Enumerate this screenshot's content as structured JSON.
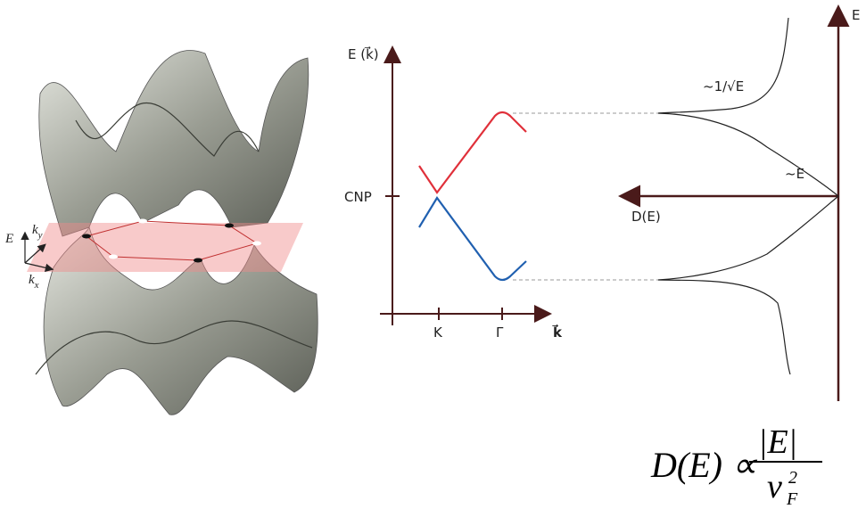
{
  "surface_axes": {
    "energy": "E",
    "ky": {
      "base": "k",
      "sub": "y"
    },
    "kx": {
      "base": "k",
      "sub": "x"
    }
  },
  "band_plot": {
    "y_label": "E (k⃗)",
    "cnp": "CNP",
    "x_ticks": [
      "K",
      "Γ"
    ],
    "x_label": "k⃗"
  },
  "dos_plot": {
    "y_label": "E",
    "x_label": "D(E)",
    "low_annotation": "~E",
    "high_annotation": "~1/√E"
  },
  "formula": {
    "left": "D(E) ∝",
    "numerator": "|E|",
    "denominator": {
      "base": "v",
      "sub": "F",
      "sup": "2"
    }
  }
}
